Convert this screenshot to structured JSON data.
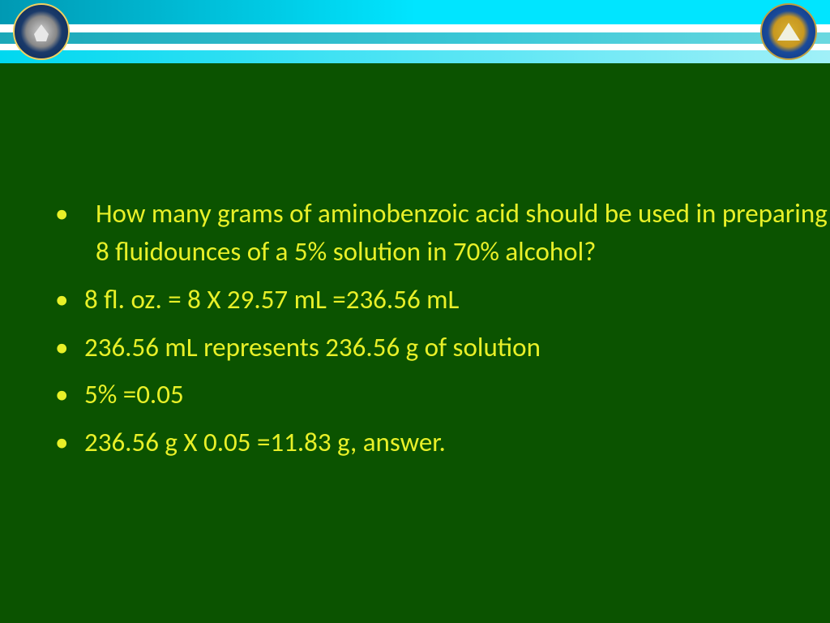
{
  "slide": {
    "background_color": "#0b5300",
    "text_color": "#e8f028",
    "font_family": "Calibri",
    "font_size_pt": 28,
    "header": {
      "stripe_colors": [
        "#00e5ff",
        "#ffffff",
        "#3cc9d8",
        "#ffffff",
        "#a0f0f8"
      ],
      "logo_left": {
        "name": "pharmacy-college-seal",
        "ring_color": "#0a2550",
        "accent": "#f0d060"
      },
      "logo_right": {
        "name": "university-of-basrah-seal",
        "ring_color": "#0a3580",
        "accent": "#c0a040"
      }
    },
    "bullets": [
      " How many grams of aminobenzoic acid should be used in preparing 8 fluidounces of a 5% solution in 70% alcohol?",
      "8 fl. oz.  = 8 X 29.57 mL =236.56 mL",
      "236.56 mL represents 236.56 g of solution",
      "5% =0.05",
      "236.56 g X 0.05 =11.83 g,  answer."
    ]
  }
}
